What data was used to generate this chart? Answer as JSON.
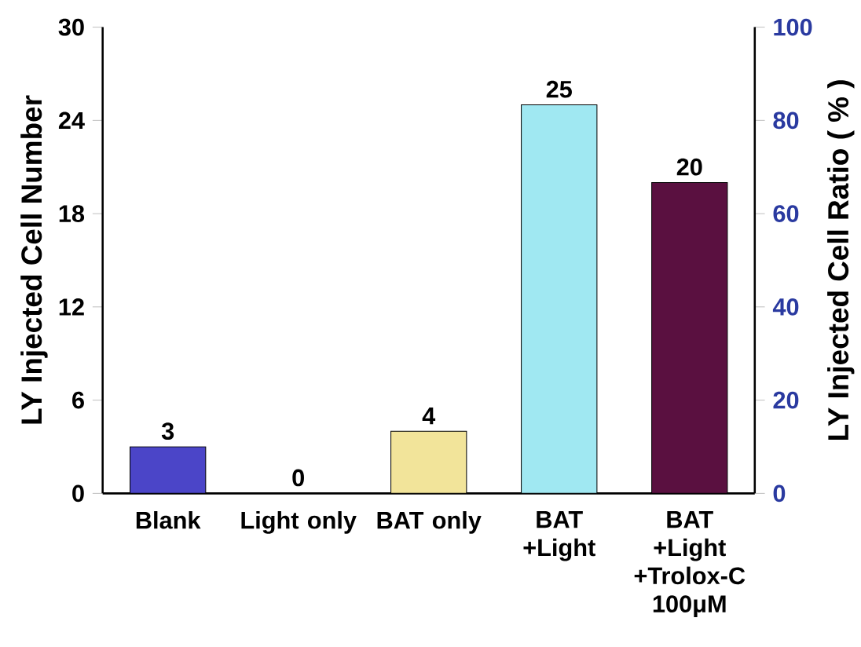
{
  "chart_data": {
    "type": "bar",
    "categories": [
      "Blank",
      "Light only",
      "BAT only",
      "BAT +Light",
      "BAT +Light +Trolox-C 100μM"
    ],
    "values": [
      3,
      0,
      4,
      25,
      20
    ],
    "colors": [
      "#4b45c8",
      "#8fd8e8",
      "#f2e49a",
      "#a0e8f2",
      "#5a1040"
    ],
    "data_labels": true,
    "ylabel": "LY Injected Cell Number",
    "y2label": "LY Injected Cell Ratio ( % )",
    "ylim": [
      0,
      30
    ],
    "yticks": [
      0,
      6,
      12,
      18,
      24,
      30
    ],
    "y2lim": [
      0,
      100
    ],
    "y2ticks": [
      0,
      20,
      40,
      60,
      80,
      100
    ],
    "grid": false
  }
}
